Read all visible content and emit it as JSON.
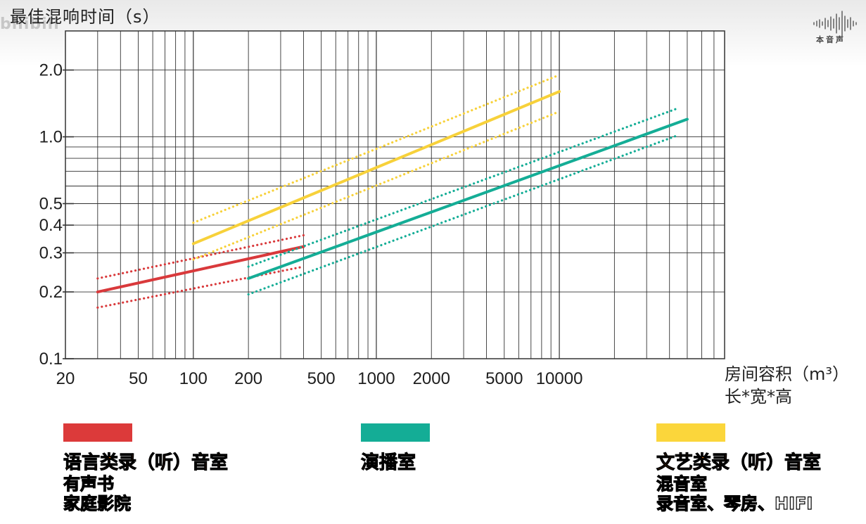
{
  "watermark": "bilibili",
  "logo_text": "本音声",
  "chart_data": {
    "type": "line",
    "ylabel": "最佳混响时间（s）",
    "xlabel": "房间容积（m³）",
    "xlabel_sub": "长*宽*高",
    "x_scale": "log",
    "y_scale": "log",
    "xlim": [
      20,
      80000
    ],
    "ylim": [
      0.1,
      3.0
    ],
    "x_ticks": [
      {
        "value": 20,
        "label": "20"
      },
      {
        "value": 50,
        "label": "50"
      },
      {
        "value": 100,
        "label": "100"
      },
      {
        "value": 200,
        "label": "200"
      },
      {
        "value": 500,
        "label": "500"
      },
      {
        "value": 1000,
        "label": "1000"
      },
      {
        "value": 2000,
        "label": "2000"
      },
      {
        "value": 5000,
        "label": "5000"
      },
      {
        "value": 10000,
        "label": "10000"
      }
    ],
    "y_ticks": [
      {
        "value": 0.1,
        "label": "0.1"
      },
      {
        "value": 0.2,
        "label": "0.2"
      },
      {
        "value": 0.3,
        "label": "0.3"
      },
      {
        "value": 0.4,
        "label": "0.4"
      },
      {
        "value": 0.5,
        "label": "0.5"
      },
      {
        "value": 1.0,
        "label": "1.0"
      },
      {
        "value": 2.0,
        "label": "2.0"
      }
    ],
    "grid": true,
    "series": [
      {
        "name": "语言类录（听）音室",
        "color": "#d9393b",
        "style": "solid",
        "points": [
          [
            30,
            0.2
          ],
          [
            400,
            0.32
          ]
        ]
      },
      {
        "name": "",
        "color": "#d9393b",
        "style": "dotted",
        "points": [
          [
            30,
            0.23
          ],
          [
            400,
            0.36
          ]
        ]
      },
      {
        "name": "",
        "color": "#d9393b",
        "style": "dotted",
        "points": [
          [
            30,
            0.17
          ],
          [
            400,
            0.26
          ]
        ]
      },
      {
        "name": "演播室",
        "color": "#14ad96",
        "style": "solid",
        "points": [
          [
            200,
            0.23
          ],
          [
            50000,
            1.2
          ]
        ]
      },
      {
        "name": "",
        "color": "#14ad96",
        "style": "dotted",
        "points": [
          [
            200,
            0.26
          ],
          [
            45000,
            1.35
          ]
        ]
      },
      {
        "name": "",
        "color": "#14ad96",
        "style": "dotted",
        "points": [
          [
            200,
            0.195
          ],
          [
            45000,
            1.02
          ]
        ]
      },
      {
        "name": "文艺类录（听）音室",
        "color": "#f7d13a",
        "style": "solid",
        "points": [
          [
            100,
            0.33
          ],
          [
            10000,
            1.6
          ]
        ]
      },
      {
        "name": "",
        "color": "#f7d13a",
        "style": "dotted",
        "points": [
          [
            100,
            0.41
          ],
          [
            10000,
            1.9
          ]
        ]
      },
      {
        "name": "",
        "color": "#f7d13a",
        "style": "dotted",
        "points": [
          [
            100,
            0.28
          ],
          [
            10000,
            1.3
          ]
        ]
      }
    ]
  },
  "legend": [
    {
      "color": "#dc3a3a",
      "title": "语言类录（听）音室",
      "lines": [
        "有声书",
        "家庭影院"
      ]
    },
    {
      "color": "#14ad96",
      "title": "演播室",
      "lines": []
    },
    {
      "color": "#fbd63b",
      "title": "文艺类录（听）音室",
      "lines": [
        "混音室",
        "录音室、琴房、HIFI"
      ]
    }
  ]
}
